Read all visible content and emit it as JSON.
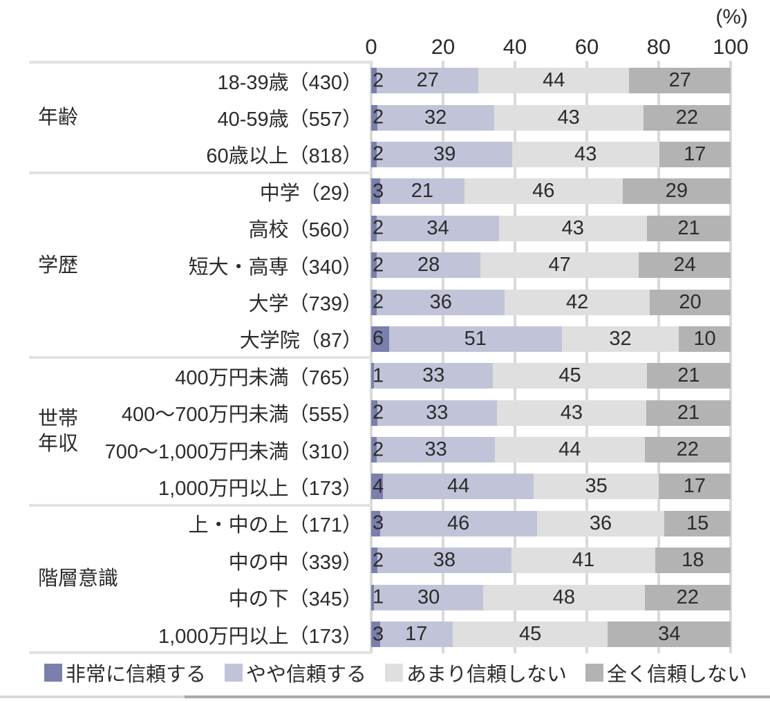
{
  "chart_data": {
    "type": "bar",
    "variant": "horizontal-stacked-100pct",
    "unit_label": "(%)",
    "x_axis": {
      "ticks": [
        0,
        20,
        40,
        60,
        80,
        100
      ],
      "range": [
        0,
        100
      ],
      "position": "top"
    },
    "grid": true,
    "legend_position": "bottom",
    "series_names": [
      "非常に信頼する",
      "やや信頼する",
      "あまり信頼しない",
      "全く信頼しない"
    ],
    "series_colors": [
      "#7a7fab",
      "#c1c4d9",
      "#dfdfdf",
      "#b3b3b3"
    ],
    "groups": [
      {
        "label": "年齢",
        "rows": [
          {
            "label": "18-39歳（430）",
            "values": [
              2,
              27,
              44,
              27
            ]
          },
          {
            "label": "40-59歳（557）",
            "values": [
              2,
              32,
              43,
              22
            ]
          },
          {
            "label": "60歳以上（818）",
            "values": [
              2,
              39,
              43,
              17
            ]
          }
        ]
      },
      {
        "label": "学歴",
        "rows": [
          {
            "label": "中学（29）",
            "values": [
              3,
              21,
              46,
              29
            ]
          },
          {
            "label": "高校（560）",
            "values": [
              2,
              34,
              43,
              21
            ]
          },
          {
            "label": "短大・高専（340）",
            "values": [
              2,
              28,
              47,
              24
            ]
          },
          {
            "label": "大学（739）",
            "values": [
              2,
              36,
              42,
              20
            ]
          },
          {
            "label": "大学院（87）",
            "values": [
              6,
              51,
              32,
              10
            ]
          }
        ]
      },
      {
        "label": "世帯\n年収",
        "rows": [
          {
            "label": "400万円未満（765）",
            "values": [
              1,
              33,
              45,
              21
            ]
          },
          {
            "label": "400〜700万円未満（555）",
            "values": [
              2,
              33,
              43,
              21
            ]
          },
          {
            "label": "700〜1,000万円未満（310）",
            "values": [
              2,
              33,
              44,
              22
            ]
          },
          {
            "label": "1,000万円以上（173）",
            "values": [
              4,
              44,
              35,
              17
            ]
          }
        ]
      },
      {
        "label": "階層意識",
        "rows": [
          {
            "label": "上・中の上（171）",
            "values": [
              3,
              46,
              36,
              15
            ]
          },
          {
            "label": "中の中（339）",
            "values": [
              2,
              38,
              41,
              18
            ]
          },
          {
            "label": "中の下（345）",
            "values": [
              1,
              30,
              48,
              22
            ]
          },
          {
            "label": "1,000万円以上（173）",
            "values": [
              3,
              17,
              45,
              34
            ]
          }
        ]
      }
    ]
  },
  "colors": {
    "gridline": "#d9d9d9",
    "group_divider": "#e2e2e2",
    "text": "#2b2b2b",
    "footer_strip_left": "#d9d9d9",
    "footer_strip_right": "#a9a9a9"
  }
}
